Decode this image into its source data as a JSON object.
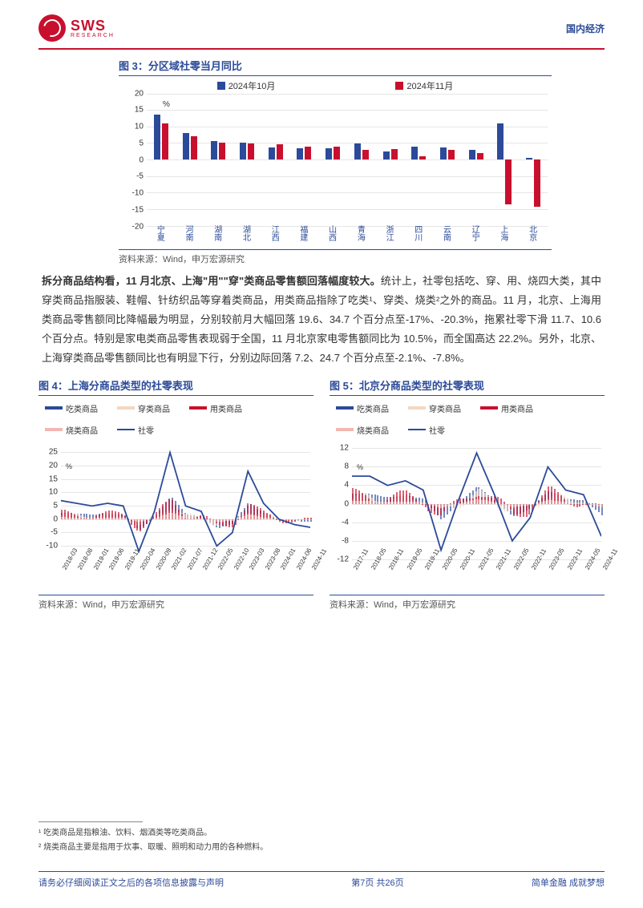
{
  "header": {
    "logo_main": "SWS",
    "logo_sub": "RESEARCH",
    "right_label": "国内经济"
  },
  "colors": {
    "brand_red": "#c8102e",
    "brand_blue": "#2b4a99",
    "grid": "#e5e5e5",
    "text": "#333333",
    "chart4_eat": "#2b4a99",
    "chart4_wear": "#f5d7c0",
    "chart4_use": "#c8102e",
    "chart4_burn": "#f2b8b0",
    "chart4_total": "#2b4a99"
  },
  "chart3": {
    "title": "图 3：分区域社零当月同比",
    "legend_oct": "2024年10月",
    "legend_nov": "2024年11月",
    "unit": "%",
    "ylim": [
      -20,
      20
    ],
    "ytick_step": 5,
    "categories": [
      "宁夏",
      "河南",
      "湖南",
      "湖北",
      "江西",
      "福建",
      "山西",
      "青海",
      "浙江",
      "四川",
      "云南",
      "辽宁",
      "上海",
      "北京"
    ],
    "oct": [
      13.5,
      8.0,
      5.5,
      5.0,
      3.7,
      3.5,
      3.5,
      4.8,
      2.5,
      4.0,
      3.7,
      3.0,
      11.0,
      0.5
    ],
    "nov": [
      11.0,
      7.0,
      5.0,
      4.8,
      4.7,
      4.0,
      4.0,
      3.0,
      3.2,
      1.0,
      2.8,
      2.0,
      -13.5,
      -14.2
    ],
    "bar_color_oct": "#2b4a99",
    "bar_color_nov": "#c8102e",
    "source": "资料来源：Wind，申万宏源研究"
  },
  "body": {
    "lead_bold": "拆分商品结构看，11 月北京、上海\"用\"\"穿\"类商品零售额回落幅度较大。",
    "para": "统计上，社零包括吃、穿、用、烧四大类，其中穿类商品指服装、鞋帽、针纺织品等穿着类商品，用类商品指除了吃类¹、穿类、烧类²之外的商品。11 月，北京、上海用类商品零售额同比降幅最为明显，分别较前月大幅回落 19.6、34.7 个百分点至-17%、-20.3%，拖累社零下滑 11.7、10.6 个百分点。特别是家电类商品零售表现弱于全国，11 月北京家电零售额同比为 10.5%，而全国高达 22.2%。另外，北京、上海穿类商品零售额同比也有明显下行，分别边际回落 7.2、24.7 个百分点至-2.1%、-7.8%。"
  },
  "chart4": {
    "title": "图 4：上海分商品类型的社零表现",
    "legend": {
      "eat": "吃类商品",
      "wear": "穿类商品",
      "use": "用类商品",
      "burn": "烧类商品",
      "total": "社零"
    },
    "unit": "%",
    "ylim": [
      -15,
      30
    ],
    "yticks": [
      -10,
      -5,
      0,
      5,
      10,
      15,
      20,
      25
    ],
    "xlabels": [
      "2018-03",
      "2018-08",
      "2019-01",
      "2019-06",
      "2019-11",
      "2020-04",
      "2020-09",
      "2021-02",
      "2021-07",
      "2021-12",
      "2022-05",
      "2022-10",
      "2023-03",
      "2023-08",
      "2024-01",
      "2024-06",
      "2024-11"
    ],
    "total_series": [
      7,
      6,
      5,
      6,
      5,
      -12,
      3,
      25,
      5,
      3,
      -10,
      -5,
      18,
      6,
      0,
      -2,
      -3
    ],
    "source": "资料来源：Wind，申万宏源研究"
  },
  "chart5": {
    "title": "图 5：北京分商品类型的社零表现",
    "legend": {
      "eat": "吃类商品",
      "wear": "穿类商品",
      "use": "用类商品",
      "burn": "烧类商品",
      "total": "社零"
    },
    "unit": "%",
    "ylim": [
      -12,
      14
    ],
    "yticks": [
      -12,
      -8,
      -4,
      0,
      4,
      8,
      12
    ],
    "xlabels": [
      "2017-11",
      "2018-05",
      "2018-11",
      "2019-05",
      "2019-11",
      "2020-05",
      "2020-11",
      "2021-05",
      "2021-11",
      "2022-05",
      "2022-11",
      "2023-05",
      "2023-11",
      "2024-05",
      "2024-11"
    ],
    "total_series": [
      6,
      6,
      4,
      5,
      3,
      -10,
      1,
      11,
      2,
      -8,
      -3,
      8,
      3,
      2,
      -7
    ],
    "source": "资料来源：Wind，申万宏源研究"
  },
  "footnotes": {
    "fn1": "¹ 吃类商品是指粮油、饮料、烟酒类等吃类商品。",
    "fn2": "² 烧类商品主要是指用于炊事、取暖、照明和动力用的各种燃料。"
  },
  "footer": {
    "left": "请务必仔细阅读正文之后的各项信息披露与声明",
    "center": "第7页 共26页",
    "right": "简单金融 成就梦想"
  }
}
